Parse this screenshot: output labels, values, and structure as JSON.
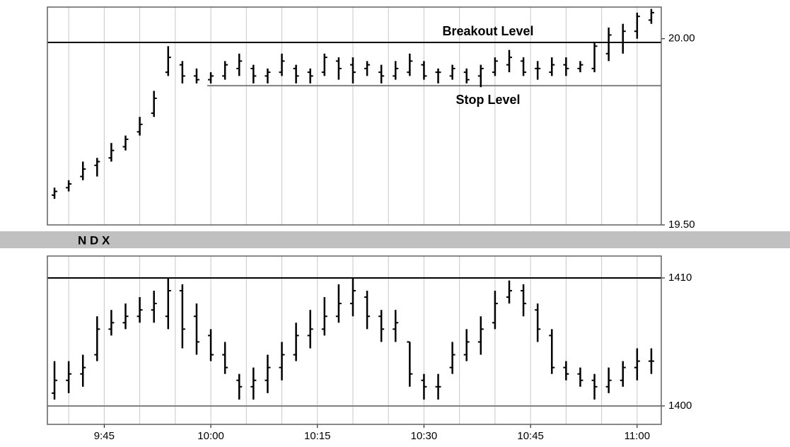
{
  "chart_data": [
    {
      "type": "ohlc",
      "color": "#000000",
      "x": [
        578,
        580,
        582,
        584,
        586,
        588,
        590,
        592,
        594,
        596,
        598,
        600,
        602,
        604,
        606,
        608,
        610,
        612,
        614,
        616,
        618,
        620,
        622,
        624,
        626,
        628,
        630,
        632,
        634,
        636,
        638,
        640,
        642,
        644,
        646,
        648,
        650,
        652,
        654,
        656,
        658,
        660,
        662
      ],
      "high": [
        19.6,
        19.62,
        19.67,
        19.68,
        19.72,
        19.74,
        19.79,
        19.86,
        19.98,
        19.94,
        19.92,
        19.91,
        19.94,
        19.96,
        19.93,
        19.92,
        19.96,
        19.93,
        19.92,
        19.96,
        19.95,
        19.95,
        19.94,
        19.93,
        19.94,
        19.96,
        19.94,
        19.92,
        19.93,
        19.92,
        19.93,
        19.95,
        19.97,
        19.95,
        19.94,
        19.95,
        19.95,
        19.94,
        19.99,
        20.03,
        20.04,
        20.07,
        20.08
      ],
      "low": [
        19.57,
        19.59,
        19.62,
        19.63,
        19.67,
        19.7,
        19.74,
        19.79,
        19.9,
        19.88,
        19.88,
        19.88,
        19.89,
        19.9,
        19.88,
        19.88,
        19.9,
        19.88,
        19.88,
        19.9,
        19.89,
        19.88,
        19.9,
        19.88,
        19.89,
        19.9,
        19.89,
        19.88,
        19.89,
        19.88,
        19.87,
        19.9,
        19.91,
        19.9,
        19.89,
        19.9,
        19.9,
        19.91,
        19.91,
        19.94,
        19.96,
        20.0,
        20.04
      ],
      "open": [
        19.58,
        19.6,
        19.63,
        19.66,
        19.68,
        19.71,
        19.75,
        19.8,
        19.91,
        19.93,
        19.9,
        19.89,
        19.9,
        19.92,
        19.92,
        19.9,
        19.91,
        19.92,
        19.91,
        19.91,
        19.94,
        19.93,
        19.92,
        19.91,
        19.9,
        19.91,
        19.93,
        19.91,
        19.9,
        19.91,
        19.9,
        19.91,
        19.93,
        19.94,
        19.92,
        19.91,
        19.93,
        19.92,
        19.92,
        19.96,
        19.99,
        20.02,
        20.05
      ],
      "close": [
        19.59,
        19.61,
        19.65,
        19.67,
        19.7,
        19.73,
        19.77,
        19.84,
        19.95,
        19.9,
        19.89,
        19.9,
        19.93,
        19.94,
        19.9,
        19.91,
        19.94,
        19.9,
        19.9,
        19.95,
        19.92,
        19.91,
        19.93,
        19.9,
        19.92,
        19.94,
        19.9,
        19.91,
        19.92,
        19.89,
        19.92,
        19.94,
        19.95,
        19.91,
        19.92,
        19.93,
        19.92,
        19.93,
        19.98,
        20.01,
        20.02,
        20.06,
        20.07
      ],
      "xlim": [
        577,
        663.4
      ],
      "xgrid": [
        580,
        585,
        590,
        595,
        600,
        605,
        610,
        615,
        620,
        625,
        630,
        635,
        640,
        645,
        650,
        655,
        660
      ],
      "ylim": [
        19.5,
        20.085
      ],
      "yticks": [
        {
          "value": 20,
          "label": "20.00"
        },
        {
          "value": 19.5,
          "label": "19.50"
        }
      ],
      "lines": [
        {
          "label": "Breakout Level",
          "value": 19.99,
          "color": "#000000",
          "label_side": "above"
        },
        {
          "label": "Stop Level",
          "value": 19.874,
          "from": 599.5,
          "color": "#808080",
          "label_side": "below"
        }
      ]
    },
    {
      "type": "ohlc",
      "title": "N D X",
      "color": "#000000",
      "x": [
        578,
        580,
        582,
        584,
        586,
        588,
        590,
        592,
        594,
        596,
        598,
        600,
        602,
        604,
        606,
        608,
        610,
        612,
        614,
        616,
        618,
        620,
        622,
        624,
        626,
        628,
        630,
        632,
        634,
        636,
        638,
        640,
        642,
        644,
        646,
        648,
        650,
        652,
        654,
        656,
        658,
        660,
        662
      ],
      "high": [
        1403.5,
        1403.5,
        1404,
        1407,
        1407.5,
        1408,
        1408.5,
        1409,
        1410,
        1409.5,
        1408,
        1406,
        1405,
        1402.5,
        1403,
        1404,
        1405,
        1406.5,
        1407.5,
        1408.5,
        1409.5,
        1410,
        1409,
        1407.5,
        1407.5,
        1405,
        1402.5,
        1402.5,
        1405,
        1406,
        1407,
        1409,
        1409.8,
        1409.5,
        1408,
        1406,
        1403.5,
        1403,
        1402.5,
        1403,
        1403.5,
        1404.5,
        1404.5
      ],
      "low": [
        1400.5,
        1401,
        1401.5,
        1403.5,
        1405.5,
        1406,
        1406.5,
        1406.5,
        1406,
        1404.5,
        1404,
        1403.5,
        1402.5,
        1400.5,
        1400.5,
        1401,
        1402,
        1403.5,
        1404.5,
        1405.5,
        1406.5,
        1407,
        1406,
        1405,
        1405,
        1401.5,
        1400.5,
        1400.5,
        1402.5,
        1403.5,
        1404,
        1406,
        1408,
        1407,
        1405,
        1402.5,
        1402,
        1401.5,
        1400.5,
        1401,
        1401.5,
        1402,
        1402.5
      ],
      "open": [
        1401,
        1402,
        1402.5,
        1404,
        1406,
        1406.5,
        1407,
        1407.5,
        1407,
        1409,
        1407,
        1405.5,
        1404,
        1402,
        1401.5,
        1402,
        1403,
        1404,
        1405.5,
        1406,
        1407,
        1408,
        1408.5,
        1407,
        1406,
        1405,
        1402,
        1401.5,
        1403,
        1404,
        1405,
        1406.5,
        1408.5,
        1409,
        1407.5,
        1405.5,
        1403,
        1402.5,
        1402,
        1401.5,
        1402,
        1403,
        1403.5
      ],
      "close": [
        1402,
        1402.5,
        1403,
        1406,
        1406.5,
        1407,
        1407.5,
        1408,
        1409,
        1406,
        1405,
        1404,
        1403,
        1401.5,
        1402,
        1403,
        1404,
        1405.5,
        1406,
        1407,
        1408,
        1409,
        1407,
        1406,
        1406.5,
        1402.5,
        1401.5,
        1401.5,
        1404,
        1405,
        1406,
        1408,
        1409,
        1408,
        1406,
        1403,
        1402.5,
        1402,
        1401.5,
        1402,
        1403,
        1403.5,
        1403.5
      ],
      "xlim": [
        577,
        663.4
      ],
      "xgrid": [
        580,
        585,
        590,
        595,
        600,
        605,
        610,
        615,
        620,
        625,
        630,
        635,
        640,
        645,
        650,
        655,
        660
      ],
      "xticks": [
        {
          "value": 585,
          "label": "9:45"
        },
        {
          "value": 600,
          "label": "10:00"
        },
        {
          "value": 615,
          "label": "10:15"
        },
        {
          "value": 630,
          "label": "10:30"
        },
        {
          "value": 645,
          "label": "10:45"
        },
        {
          "value": 660,
          "label": "11:00"
        }
      ],
      "ylim": [
        1398.56,
        1411.71
      ],
      "yticks": [
        1400,
        1410
      ],
      "tick_line_colors": [
        "#808080",
        "#000000"
      ]
    }
  ]
}
